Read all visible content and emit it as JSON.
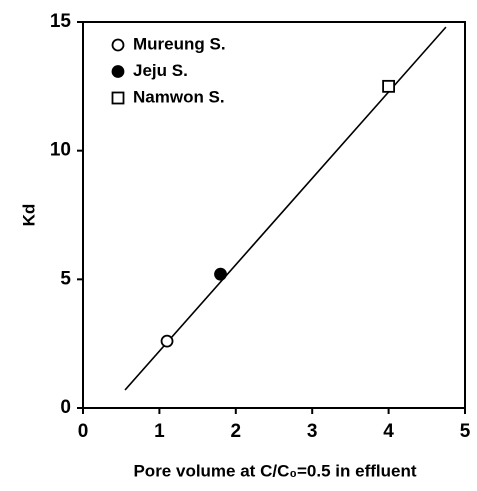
{
  "chart_data": {
    "type": "scatter",
    "xlabel": "Pore volume at C/C₀=0.5 in effluent",
    "ylabel": "Kd",
    "xlim": [
      0,
      5
    ],
    "xticks": [
      0,
      1,
      2,
      3,
      4,
      5
    ],
    "ylim": [
      0,
      15
    ],
    "yticks": [
      0,
      5,
      10,
      15
    ],
    "legend": "upper left",
    "series": [
      {
        "name": "Mureung S.",
        "marker": "circle-open",
        "color": "#000000",
        "x": [
          1.1
        ],
        "y": [
          2.6
        ]
      },
      {
        "name": "Jeju S.",
        "marker": "circle-filled",
        "color": "#000000",
        "x": [
          1.8
        ],
        "y": [
          5.2
        ]
      },
      {
        "name": "Namwon S.",
        "marker": "square-open",
        "color": "#000000",
        "x": [
          4.0
        ],
        "y": [
          12.5
        ]
      }
    ],
    "line": {
      "color": "#000000",
      "x": [
        0.55,
        4.75
      ],
      "y": [
        0.7,
        14.8
      ]
    }
  }
}
